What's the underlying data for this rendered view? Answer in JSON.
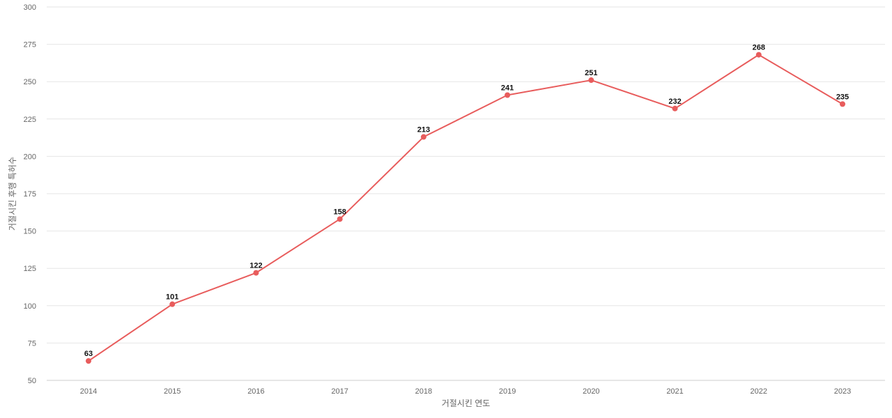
{
  "chart_data": {
    "type": "line",
    "title": "",
    "xlabel": "거절시킨 연도",
    "ylabel": "거절시킨 후행 특허수",
    "categories": [
      "2014",
      "2015",
      "2016",
      "2017",
      "2018",
      "2019",
      "2020",
      "2021",
      "2022",
      "2023"
    ],
    "series": [
      {
        "values": [
          63,
          101,
          122,
          158,
          213,
          241,
          251,
          232,
          268,
          235
        ],
        "color": "#e85c5c"
      }
    ],
    "ylim": [
      50,
      300
    ],
    "yticks": [
      50,
      75,
      100,
      125,
      150,
      175,
      200,
      225,
      250,
      275,
      300
    ],
    "grid": true,
    "legend": "none",
    "data_labels": true
  }
}
